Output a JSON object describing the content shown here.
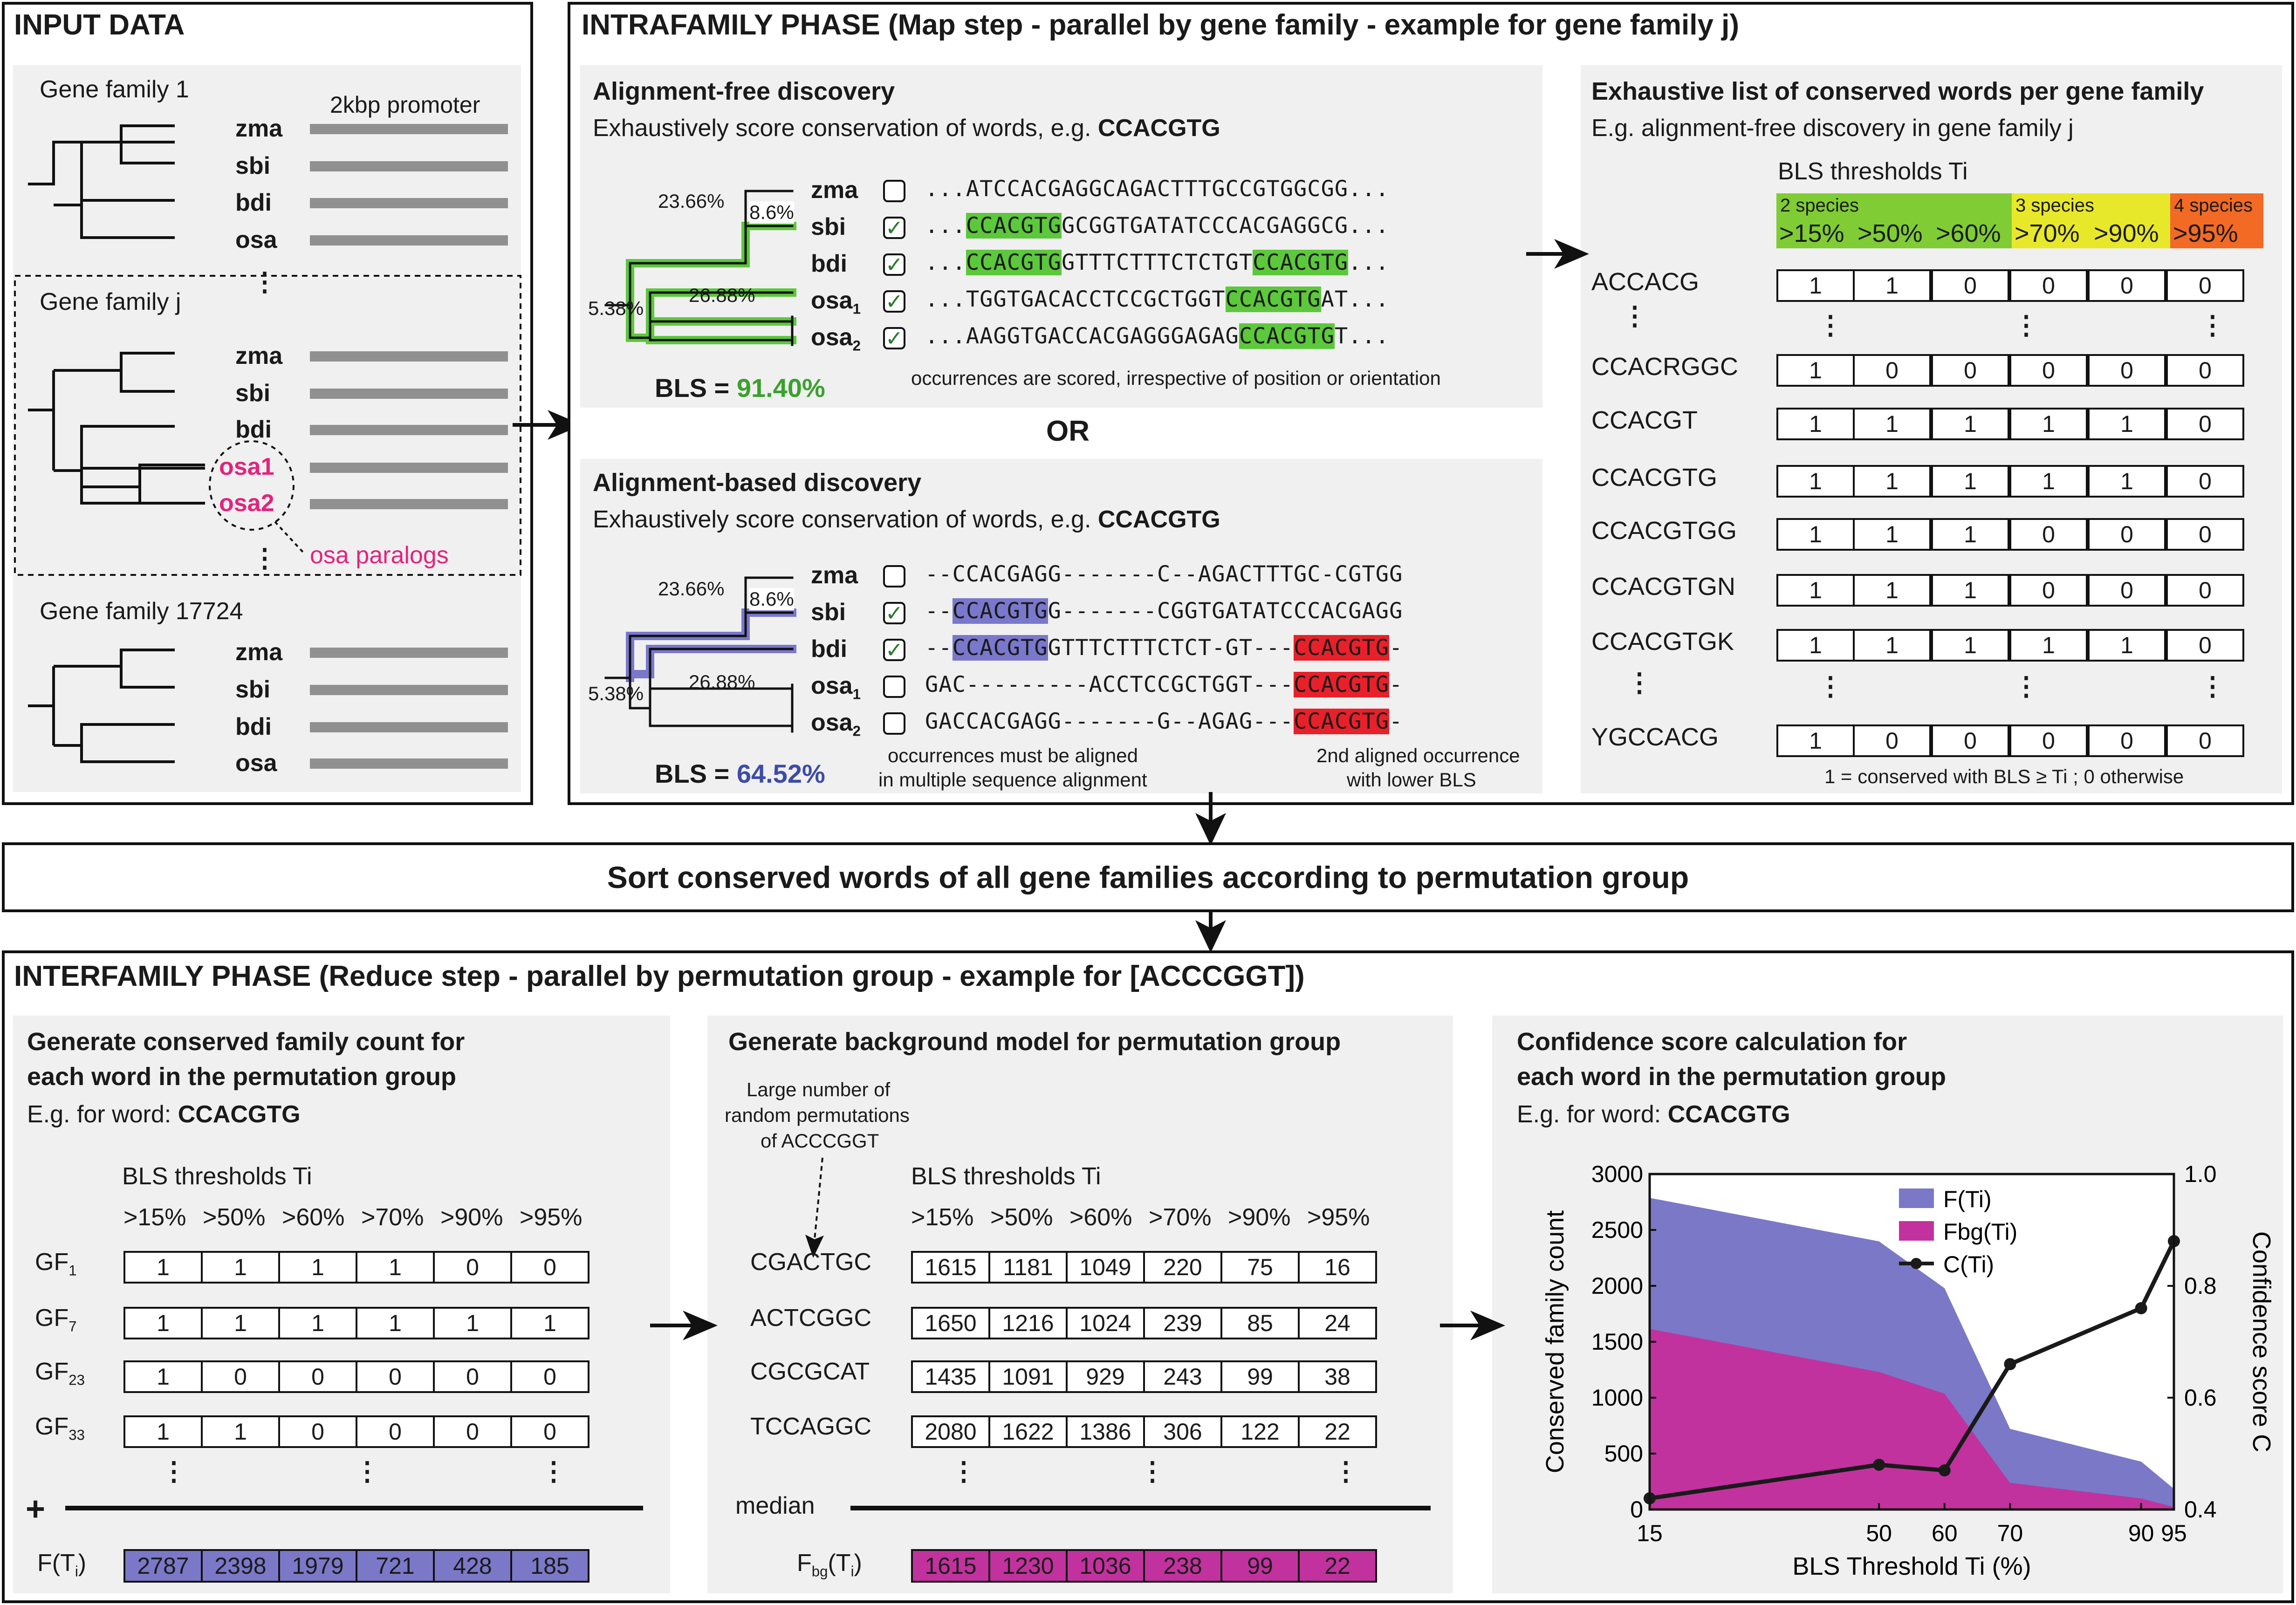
{
  "input_data": {
    "title": "INPUT DATA",
    "promoter_label": "2kbp promoter",
    "family1": {
      "name": "Gene family 1",
      "species": [
        "zma",
        "sbi",
        "bdi",
        "osa"
      ]
    },
    "familyj": {
      "name": "Gene family j",
      "species": [
        "zma",
        "sbi",
        "bdi"
      ],
      "paralogs": [
        "osa1",
        "osa2"
      ],
      "paralog_note": "osa paralogs"
    },
    "family_last": {
      "name": "Gene family 17724",
      "species": [
        "zma",
        "sbi",
        "bdi",
        "osa"
      ]
    },
    "ellipsis": "⋮"
  },
  "intrafamily": {
    "title": "INTRAFAMILY PHASE (Map step - parallel by gene family - example for gene family j)",
    "or_label": "OR",
    "alignment_free": {
      "heading": "Alignment-free discovery",
      "subtitle_prefix": "Exhaustively score conservation of words, e.g.",
      "word": "CCACGTG",
      "branch_lengths": [
        "23.66%",
        "8.6%",
        "26.88%",
        "5.38%"
      ],
      "species": [
        "zma",
        "sbi",
        "bdi",
        "osa1",
        "osa2"
      ],
      "checked": [
        false,
        true,
        true,
        true,
        true
      ],
      "sequences": [
        "...ATCCACGAGGCAGACTTTGCCGTGGCGG...",
        "...CCACGTGGCGGTGATATCCCACGAGGCG...",
        "...CCACGTGGTTTCTTTCTCTGTCCACGTG...",
        "...TGGTGACACCTCCGCTGGTCCACGTGAT...",
        "...AAGGTGACCACGAGGGAGAGCCACGTGT..."
      ],
      "bls_label": "BLS =",
      "bls_value": "91.40%",
      "note": "occurrences are scored, irrespective of position or orientation",
      "highlight_color": "#5cc83b"
    },
    "alignment_based": {
      "heading": "Alignment-based discovery",
      "subtitle_prefix": "Exhaustively score conservation of words, e.g.",
      "word": "CCACGTG",
      "branch_lengths": [
        "23.66%",
        "8.6%",
        "26.88%",
        "5.38%"
      ],
      "species": [
        "zma",
        "sbi",
        "bdi",
        "osa1",
        "osa2"
      ],
      "checked": [
        false,
        true,
        true,
        false,
        false
      ],
      "sequences": [
        "--CCACGAGG-------C--AGACTTTGC-CGTGG",
        "--CCACGTGG-------CGGTGATATCCCACGAGG",
        "--CCACGTGGTTTCTTTCTCT-GT---CCACGTG-",
        "GAC---------ACCTCCGCTGGT---CCACGTG-",
        "GACCACGAGG-------G--AGAG---CCACGTG-"
      ],
      "bls_label": "BLS =",
      "bls_value": "64.52%",
      "note_left_1": "occurrences must be aligned",
      "note_left_2": "in multiple sequence alignment",
      "note_right_1": "2nd aligned occurrence",
      "note_right_2": "with lower BLS",
      "highlight_color": "#7a78cc",
      "second_color": "#e8202a"
    },
    "exhaustive": {
      "heading": "Exhaustive list of conserved words per gene family",
      "subtitle": "E.g. alignment-free discovery in gene family j",
      "thresholds_label": "BLS thresholds Ti",
      "groups": [
        {
          "label": "2 species",
          "color": "#7fcc35"
        },
        {
          "label": "3 species",
          "color": "#e8e82a"
        },
        {
          "label": "4 species",
          "color": "#f26a24"
        }
      ],
      "thresholds": [
        ">15%",
        ">50%",
        ">60%",
        ">70%",
        ">90%",
        ">95%"
      ],
      "rows": [
        {
          "word": "ACCACG",
          "values": [
            "1",
            "1",
            "0",
            "0",
            "0",
            "0"
          ]
        },
        {
          "word": "CCACRGGC",
          "values": [
            "1",
            "0",
            "0",
            "0",
            "0",
            "0"
          ]
        },
        {
          "word": "CCACGT",
          "values": [
            "1",
            "1",
            "1",
            "1",
            "1",
            "0"
          ]
        },
        {
          "word": "CCACGTG",
          "values": [
            "1",
            "1",
            "1",
            "1",
            "1",
            "0"
          ]
        },
        {
          "word": "CCACGTGG",
          "values": [
            "1",
            "1",
            "1",
            "0",
            "0",
            "0"
          ]
        },
        {
          "word": "CCACGTGN",
          "values": [
            "1",
            "1",
            "1",
            "0",
            "0",
            "0"
          ]
        },
        {
          "word": "CCACGTGK",
          "values": [
            "1",
            "1",
            "1",
            "1",
            "1",
            "0"
          ]
        },
        {
          "word": "YGCCACG",
          "values": [
            "1",
            "0",
            "0",
            "0",
            "0",
            "0"
          ]
        }
      ],
      "footnote": "1 = conserved with BLS ≥ Ti ; 0 otherwise"
    }
  },
  "sort_step": {
    "label": "Sort conserved words of all gene families according to permutation group"
  },
  "interfamily": {
    "title": "INTERFAMILY PHASE (Reduce step - parallel by permutation group - example for [ACCCGGT])",
    "count_panel": {
      "heading_1": "Generate conserved family count for",
      "heading_2": "each word in the permutation group",
      "subtitle_prefix": "E.g. for word:",
      "word": "CCACGTG",
      "thresholds_label": "BLS thresholds Ti",
      "thresholds": [
        ">15%",
        ">50%",
        ">60%",
        ">70%",
        ">90%",
        ">95%"
      ],
      "rows": [
        {
          "label": "GF1",
          "values": [
            "1",
            "1",
            "1",
            "1",
            "0",
            "0"
          ]
        },
        {
          "label": "GF7",
          "values": [
            "1",
            "1",
            "1",
            "1",
            "1",
            "1"
          ]
        },
        {
          "label": "GF23",
          "values": [
            "1",
            "0",
            "0",
            "0",
            "0",
            "0"
          ]
        },
        {
          "label": "GF33",
          "values": [
            "1",
            "1",
            "0",
            "0",
            "0",
            "0"
          ]
        }
      ],
      "sum_symbol": "+",
      "result_label": "F(Ti)",
      "result_values": [
        "2787",
        "2398",
        "1979",
        "721",
        "428",
        "185"
      ],
      "result_color": "#7b78c8"
    },
    "background_panel": {
      "heading": "Generate background model for permutation group",
      "note_1": "Large number of",
      "note_2": "random permutations",
      "note_3": "of ACCCGGT",
      "thresholds_label": "BLS thresholds Ti",
      "thresholds": [
        ">15%",
        ">50%",
        ">60%",
        ">70%",
        ">90%",
        ">95%"
      ],
      "rows": [
        {
          "label": "CGACTGC",
          "values": [
            "1615",
            "1181",
            "1049",
            "220",
            "75",
            "16"
          ]
        },
        {
          "label": "ACTCGGC",
          "values": [
            "1650",
            "1216",
            "1024",
            "239",
            "85",
            "24"
          ]
        },
        {
          "label": "CGCGCAT",
          "values": [
            "1435",
            "1091",
            "929",
            "243",
            "99",
            "38"
          ]
        },
        {
          "label": "TCCAGGC",
          "values": [
            "2080",
            "1622",
            "1386",
            "306",
            "122",
            "22"
          ]
        }
      ],
      "median_label": "median",
      "result_label": "Fbg(Ti)",
      "result_values": [
        "1615",
        "1230",
        "1036",
        "238",
        "99",
        "22"
      ],
      "result_color": "#c2329e"
    },
    "confidence_panel": {
      "heading_1": "Confidence score calculation for",
      "heading_2": "each word in the permutation group",
      "subtitle_prefix": "E.g. for word:",
      "word": "CCACGTG"
    }
  },
  "chart_data": {
    "type": "area",
    "x": [
      15,
      50,
      60,
      70,
      90,
      95
    ],
    "xticks": [
      "15",
      "50",
      "60",
      "70",
      "90",
      "95"
    ],
    "xlabel": "BLS Threshold Ti (%)",
    "ylabel": "Conserved family count",
    "y2label": "Confidence score C",
    "ylim": [
      0,
      3000
    ],
    "y2lim": [
      0.4,
      1.0
    ],
    "yticks": [
      "0",
      "500",
      "1000",
      "1500",
      "2000",
      "2500",
      "3000"
    ],
    "y2ticks": [
      "0.4",
      "0.6",
      "0.8",
      "1.0"
    ],
    "legend_position": "top-right",
    "series": [
      {
        "name": "F(Ti)",
        "kind": "area",
        "axis": "left",
        "color": "#7b78c8",
        "values": [
          2787,
          2398,
          1979,
          721,
          428,
          185
        ]
      },
      {
        "name": "Fbg(Ti)",
        "kind": "area",
        "axis": "left",
        "color": "#c2329e",
        "values": [
          1615,
          1230,
          1036,
          238,
          99,
          22
        ]
      },
      {
        "name": "C(Ti)",
        "kind": "line",
        "axis": "right",
        "color": "#1a1a1a",
        "values": [
          0.42,
          0.48,
          0.47,
          0.66,
          0.76,
          0.88
        ]
      }
    ]
  }
}
